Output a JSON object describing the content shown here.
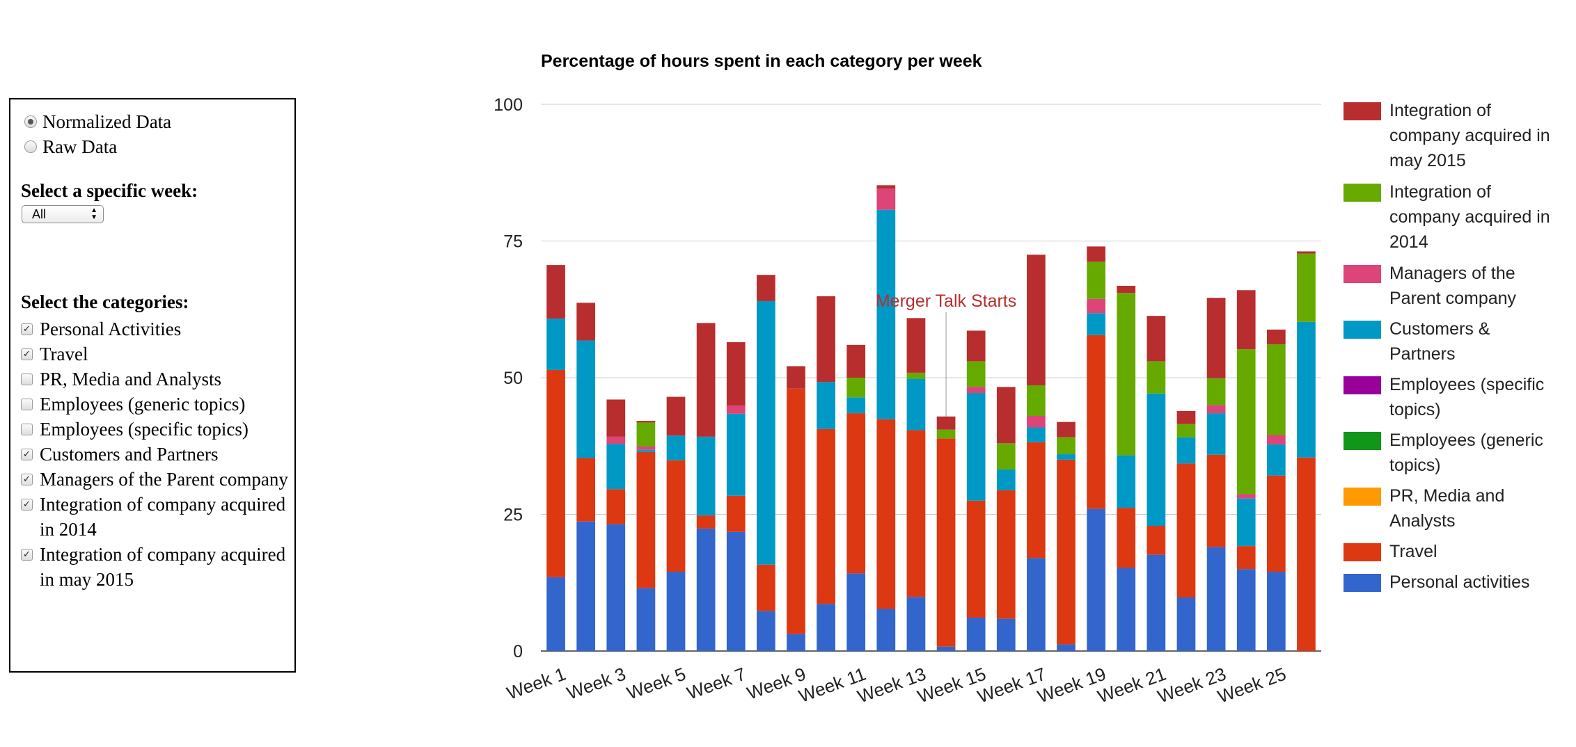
{
  "panel": {
    "mode_options": [
      {
        "label": "Normalized Data",
        "checked": true
      },
      {
        "label": "Raw Data",
        "checked": false
      }
    ],
    "week_title": "Select a specific week:",
    "week_select_value": "All",
    "categories_title": "Select the categories:",
    "categories": [
      {
        "label": "Personal Activities",
        "checked": true
      },
      {
        "label": "Travel",
        "checked": true
      },
      {
        "label": "PR, Media and Analysts",
        "checked": false
      },
      {
        "label": "Employees (generic topics)",
        "checked": false
      },
      {
        "label": "Employees (specific topics)",
        "checked": false
      },
      {
        "label": "Customers and Partners",
        "checked": true
      },
      {
        "label": "Managers of the Parent company",
        "checked": true
      },
      {
        "label": "Integration of company acquired in 2014",
        "checked": true
      },
      {
        "label": "Integration of company acquired in may 2015",
        "checked": true
      }
    ]
  },
  "chart_data": {
    "type": "bar",
    "stacked": true,
    "title": "Percentage of hours spent in each category per week",
    "xlabel": "",
    "ylabel": "",
    "ylim": [
      0,
      100
    ],
    "yticks": [
      0,
      25,
      50,
      75,
      100
    ],
    "grid": true,
    "legend_position": "right",
    "categories": [
      "Week 1",
      "Week 2",
      "Week 3",
      "Week 4",
      "Week 5",
      "Week 6",
      "Week 7",
      "Week 8",
      "Week 9",
      "Week 10",
      "Week 11",
      "Week 12",
      "Week 13",
      "Week 14",
      "Week 15",
      "Week 16",
      "Week 17",
      "Week 18",
      "Week 19",
      "Week 20",
      "Week 21",
      "Week 22",
      "Week 23",
      "Week 24",
      "Week 25",
      "Week 26"
    ],
    "xtick_labels": [
      "Week 1",
      "Week 3",
      "Week 5",
      "Week 7",
      "Week 9",
      "Week 11",
      "Week 13",
      "Week 15",
      "Week 17",
      "Week 19",
      "Week 21",
      "Week 23",
      "Week 25"
    ],
    "series": [
      {
        "name": "Personal activities",
        "color": "#3366cc",
        "values": [
          13.5,
          23.7,
          23.2,
          11.5,
          14.5,
          22.4,
          21.8,
          7.3,
          3.1,
          8.6,
          14.2,
          7.7,
          9.9,
          0.8,
          6.1,
          5.9,
          17.0,
          1.2,
          26.0,
          15.2,
          17.6,
          9.8,
          19.0,
          15.0,
          14.5,
          0
        ]
      },
      {
        "name": "Travel",
        "color": "#dc3912",
        "values": [
          37.9,
          11.6,
          6.4,
          24.9,
          20.4,
          2.4,
          6.6,
          8.5,
          44.9,
          32.0,
          29.3,
          34.7,
          30.5,
          38.1,
          21.4,
          23.5,
          21.2,
          33.8,
          31.8,
          11.0,
          5.3,
          24.5,
          16.9,
          4.2,
          17.6,
          35.4
        ]
      },
      {
        "name": "PR, Media and Analysts",
        "color": "#ff9900",
        "values": [
          0,
          0,
          0,
          0,
          0,
          0,
          0,
          0,
          0,
          0,
          0,
          0,
          0,
          0,
          0,
          0,
          0,
          0,
          0,
          0,
          0,
          0,
          0,
          0,
          0,
          0
        ]
      },
      {
        "name": "Employees (generic topics)",
        "color": "#109618",
        "values": [
          0,
          0,
          0,
          0,
          0,
          0,
          0,
          0,
          0,
          0,
          0,
          0,
          0,
          0,
          0,
          0,
          0,
          0,
          0,
          0,
          0,
          0,
          0,
          0,
          0,
          0
        ]
      },
      {
        "name": "Employees (specific topics)",
        "color": "#990099",
        "values": [
          0,
          0,
          0,
          0,
          0,
          0,
          0,
          0,
          0,
          0,
          0,
          0,
          0,
          0,
          0,
          0,
          0,
          0,
          0,
          0,
          0,
          0,
          0,
          0,
          0,
          0
        ]
      },
      {
        "name": "Customers & Partners",
        "color": "#0099c6",
        "values": [
          9.4,
          21.5,
          8.3,
          0.4,
          4.5,
          14.4,
          15.0,
          48.2,
          0,
          8.6,
          2.9,
          38.3,
          9.4,
          0,
          19.7,
          3.8,
          2.7,
          1.0,
          4.0,
          9.6,
          24.2,
          4.8,
          7.6,
          8.7,
          5.7,
          24.8
        ]
      },
      {
        "name": "Managers of the Parent company",
        "color": "#dd4477",
        "values": [
          0,
          0,
          1.3,
          0.6,
          0,
          0,
          1.5,
          0,
          0,
          0,
          0,
          3.9,
          0,
          0,
          1.1,
          0,
          2.1,
          0,
          2.6,
          0,
          0,
          0,
          1.5,
          0.8,
          1.7,
          0
        ]
      },
      {
        "name": "Integration of company acquired in 2014",
        "color": "#66aa00",
        "values": [
          0,
          0,
          0,
          4.4,
          0,
          0,
          0,
          0,
          0,
          0,
          3.6,
          0,
          1.1,
          1.6,
          4.7,
          4.8,
          5.6,
          3.1,
          6.8,
          29.7,
          5.9,
          2.4,
          4.9,
          26.5,
          16.6,
          12.5
        ]
      },
      {
        "name": "Integration of company acquired in may 2015",
        "color": "#b82e2e",
        "values": [
          9.8,
          6.9,
          6.8,
          0.3,
          7.1,
          20.8,
          11.6,
          4.8,
          4.1,
          15.7,
          6.0,
          0.6,
          10.0,
          2.4,
          5.6,
          10.3,
          23.9,
          2.8,
          2.8,
          1.3,
          8.3,
          2.4,
          14.7,
          10.8,
          2.7,
          0.4
        ]
      }
    ],
    "annotation": {
      "text": "Merger Talk Starts",
      "category": "Week 14",
      "value": 63
    }
  },
  "legend": [
    {
      "label": "Integration of company acquired in may 2015",
      "color": "#b82e2e"
    },
    {
      "label": "Integration of company acquired in 2014",
      "color": "#66aa00"
    },
    {
      "label": "Managers of the Parent company",
      "color": "#dd4477"
    },
    {
      "label": "Customers & Partners",
      "color": "#0099c6"
    },
    {
      "label": "Employees (specific topics)",
      "color": "#990099"
    },
    {
      "label": "Employees (generic topics)",
      "color": "#109618"
    },
    {
      "label": "PR, Media and Analysts",
      "color": "#ff9900"
    },
    {
      "label": "Travel",
      "color": "#dc3912"
    },
    {
      "label": "Personal activities",
      "color": "#3366cc"
    }
  ]
}
